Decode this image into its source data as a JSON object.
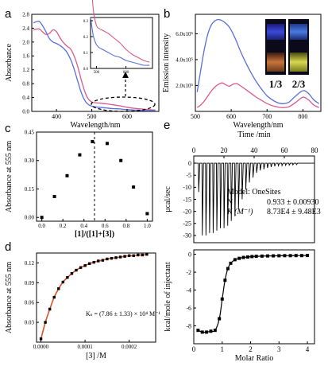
{
  "chart_data": [
    {
      "panel": "a",
      "type": "line",
      "xlabel": "Wavelength/nm",
      "ylabel": "Absorbance",
      "xlim": [
        330,
        690
      ],
      "ylim": [
        0,
        2.8
      ],
      "xticks": [
        "400",
        "500",
        "600"
      ],
      "yticks": [
        "0.0",
        "0.4",
        "0.8",
        "1.2",
        "1.6",
        "2.0",
        "2.4",
        "2.8"
      ],
      "series": [
        {
          "color": "#d85a8c",
          "x": [
            335,
            350,
            360,
            370,
            380,
            390,
            400,
            410,
            420,
            430,
            440,
            450,
            460,
            470,
            480,
            490,
            500,
            510,
            520,
            540,
            560,
            580,
            600,
            620,
            640,
            660,
            680
          ],
          "y": [
            2.35,
            2.38,
            2.3,
            2.22,
            2.25,
            2.35,
            2.3,
            2.12,
            1.98,
            1.88,
            1.8,
            1.6,
            1.3,
            0.92,
            0.58,
            0.36,
            0.27,
            0.25,
            0.24,
            0.22,
            0.19,
            0.16,
            0.12,
            0.09,
            0.07,
            0.05,
            0.04
          ]
        },
        {
          "color": "#5a6ed8",
          "x": [
            335,
            350,
            360,
            370,
            380,
            390,
            400,
            410,
            420,
            430,
            440,
            450,
            460,
            470,
            480,
            490,
            500,
            510,
            520,
            540,
            560,
            580,
            600,
            620,
            640,
            660,
            680
          ],
          "y": [
            2.55,
            2.6,
            2.48,
            2.3,
            2.1,
            2.0,
            1.96,
            1.9,
            1.82,
            1.7,
            1.5,
            1.22,
            0.88,
            0.55,
            0.32,
            0.2,
            0.15,
            0.13,
            0.12,
            0.1,
            0.08,
            0.07,
            0.05,
            0.04,
            0.03,
            0.02,
            0.02
          ]
        }
      ],
      "inset": {
        "xlim": [
          480,
          690
        ],
        "ylim": [
          0,
          0.32
        ],
        "xticks": [
          "500",
          "600"
        ],
        "yticks": [
          "0.0",
          "0.1",
          "0.2",
          "0.3"
        ]
      }
    },
    {
      "panel": "b",
      "type": "line",
      "xlabel": "Wavelength/nm",
      "ylabel": "Emission intensity",
      "xlim": [
        500,
        850
      ],
      "ylim": [
        0,
        750000
      ],
      "xticks": [
        "500",
        "600",
        "700",
        "800"
      ],
      "yticks": [
        "2.0x10⁵",
        "4.0x10⁵",
        "6.0x10⁵"
      ],
      "inset_labels": [
        "1/3",
        "2/3"
      ],
      "series": [
        {
          "color": "#5a6ed8",
          "x": [
            505,
            515,
            525,
            535,
            545,
            555,
            565,
            575,
            585,
            595,
            605,
            615,
            625,
            640,
            655,
            670,
            685,
            700,
            720,
            740,
            760,
            780,
            800,
            815,
            830,
            845
          ],
          "y": [
            150000,
            320000,
            480000,
            600000,
            670000,
            700000,
            710000,
            700000,
            680000,
            650000,
            600000,
            540000,
            470000,
            380000,
            300000,
            230000,
            170000,
            120000,
            80000,
            60000,
            70000,
            120000,
            160000,
            140000,
            90000,
            60000
          ]
        },
        {
          "color": "#d85a8c",
          "x": [
            505,
            515,
            525,
            535,
            545,
            555,
            565,
            575,
            585,
            595,
            605,
            615,
            625,
            640,
            655,
            670,
            685,
            700,
            720,
            740,
            760,
            780,
            800,
            815,
            830,
            845
          ],
          "y": [
            30000,
            50000,
            80000,
            120000,
            160000,
            190000,
            210000,
            220000,
            205000,
            195000,
            210000,
            215000,
            200000,
            170000,
            140000,
            110000,
            85000,
            60000,
            40000,
            30000,
            35000,
            70000,
            110000,
            90000,
            50000,
            30000
          ]
        }
      ]
    },
    {
      "panel": "c",
      "type": "scatter",
      "xlabel": "[1]/([1]+[3])",
      "ylabel": "Absorbance at 555 nm",
      "xlim": [
        -0.05,
        1.05
      ],
      "ylim": [
        -0.02,
        0.45
      ],
      "xticks": [
        "0.0",
        "0.2",
        "0.4",
        "0.6",
        "0.8",
        "1.0"
      ],
      "yticks": [
        "0.00",
        "0.15",
        "0.30",
        "0.45"
      ],
      "dashed_x": 0.5,
      "x": [
        0.0,
        0.12,
        0.24,
        0.36,
        0.48,
        0.62,
        0.75,
        0.87,
        1.0
      ],
      "y": [
        0.0,
        0.11,
        0.22,
        0.33,
        0.4,
        0.39,
        0.3,
        0.16,
        0.02
      ]
    },
    {
      "panel": "d",
      "type": "scatter",
      "xlabel": "[3] /M",
      "ylabel": "Absorbance at 555 nm",
      "xlim": [
        -1e-05,
        0.00026
      ],
      "ylim": [
        0,
        0.135
      ],
      "xticks": [
        "0.0000",
        "0.0001",
        "0.0002"
      ],
      "yticks": [
        "0.03",
        "0.06",
        "0.09",
        "0.12"
      ],
      "annotation": "Kₛ = (7.86 ± 1.33) × 10⁴ M⁻¹",
      "fit_color": "#e0502a",
      "x": [
        0.0,
        1e-05,
        2e-05,
        3e-05,
        4e-05,
        5e-05,
        6e-05,
        7e-05,
        8e-05,
        9e-05,
        0.0001,
        0.00011,
        0.00012,
        0.00013,
        0.00014,
        0.00015,
        0.00016,
        0.00017,
        0.00018,
        0.00019,
        0.0002,
        0.00021,
        0.00022,
        0.00023,
        0.00024
      ],
      "y": [
        0.005,
        0.03,
        0.05,
        0.068,
        0.081,
        0.091,
        0.098,
        0.104,
        0.109,
        0.113,
        0.116,
        0.119,
        0.121,
        0.123,
        0.124,
        0.126,
        0.127,
        0.128,
        0.129,
        0.13,
        0.131,
        0.131,
        0.132,
        0.132,
        0.133
      ]
    },
    {
      "panel": "e",
      "type": "line",
      "top": {
        "xlabel": "Time /min",
        "ylabel": "μcal/sec",
        "xlim": [
          0,
          80
        ],
        "ylim": [
          -33,
          3
        ],
        "xticks": [
          "0",
          "20",
          "40",
          "60",
          "80"
        ],
        "yticks": [
          "0",
          "-5",
          "-10",
          "-15",
          "-20",
          "-25",
          "-30"
        ],
        "fit_box": {
          "model": "Model: OneSites",
          "rows": [
            {
              "label": "N",
              "value": "0.933 ± 0.00930"
            },
            {
              "label": "K (M⁻¹)",
              "value": "8.73E4 ± 9.48E3"
            }
          ]
        },
        "injections": {
          "start_min": 3,
          "interval_min": 2.4,
          "depths": [
            -12,
            -30,
            -30,
            -29,
            -29,
            -28,
            -27,
            -27,
            -26,
            -24,
            -22,
            -19,
            -15,
            -11,
            -8,
            -6,
            -4,
            -3,
            -2.5,
            -2,
            -1.6,
            -1.3,
            -1.1,
            -1,
            -0.9,
            -0.8,
            -0.7,
            -0.6
          ]
        }
      },
      "bottom": {
        "xlabel": "Molar Ratio",
        "ylabel": "kcal/mole of injectant",
        "xlim": [
          0,
          4.25
        ],
        "ylim": [
          -10,
          0.5
        ],
        "xticks": [
          "0",
          "1",
          "2",
          "3",
          "4"
        ],
        "yticks": [
          "0",
          "-2",
          "-4",
          "-6",
          "-8"
        ],
        "x": [
          0.15,
          0.3,
          0.45,
          0.6,
          0.75,
          0.9,
          1.0,
          1.1,
          1.2,
          1.3,
          1.45,
          1.6,
          1.75,
          1.9,
          2.05,
          2.2,
          2.4,
          2.6,
          2.8,
          3.0,
          3.2,
          3.4,
          3.6,
          3.8,
          4.0
        ],
        "y": [
          -8.5,
          -8.7,
          -8.7,
          -8.6,
          -8.5,
          -7.2,
          -5.0,
          -2.9,
          -1.6,
          -1.0,
          -0.6,
          -0.45,
          -0.35,
          -0.3,
          -0.25,
          -0.22,
          -0.2,
          -0.18,
          -0.17,
          -0.16,
          -0.15,
          -0.15,
          -0.14,
          -0.14,
          -0.13
        ]
      }
    }
  ]
}
